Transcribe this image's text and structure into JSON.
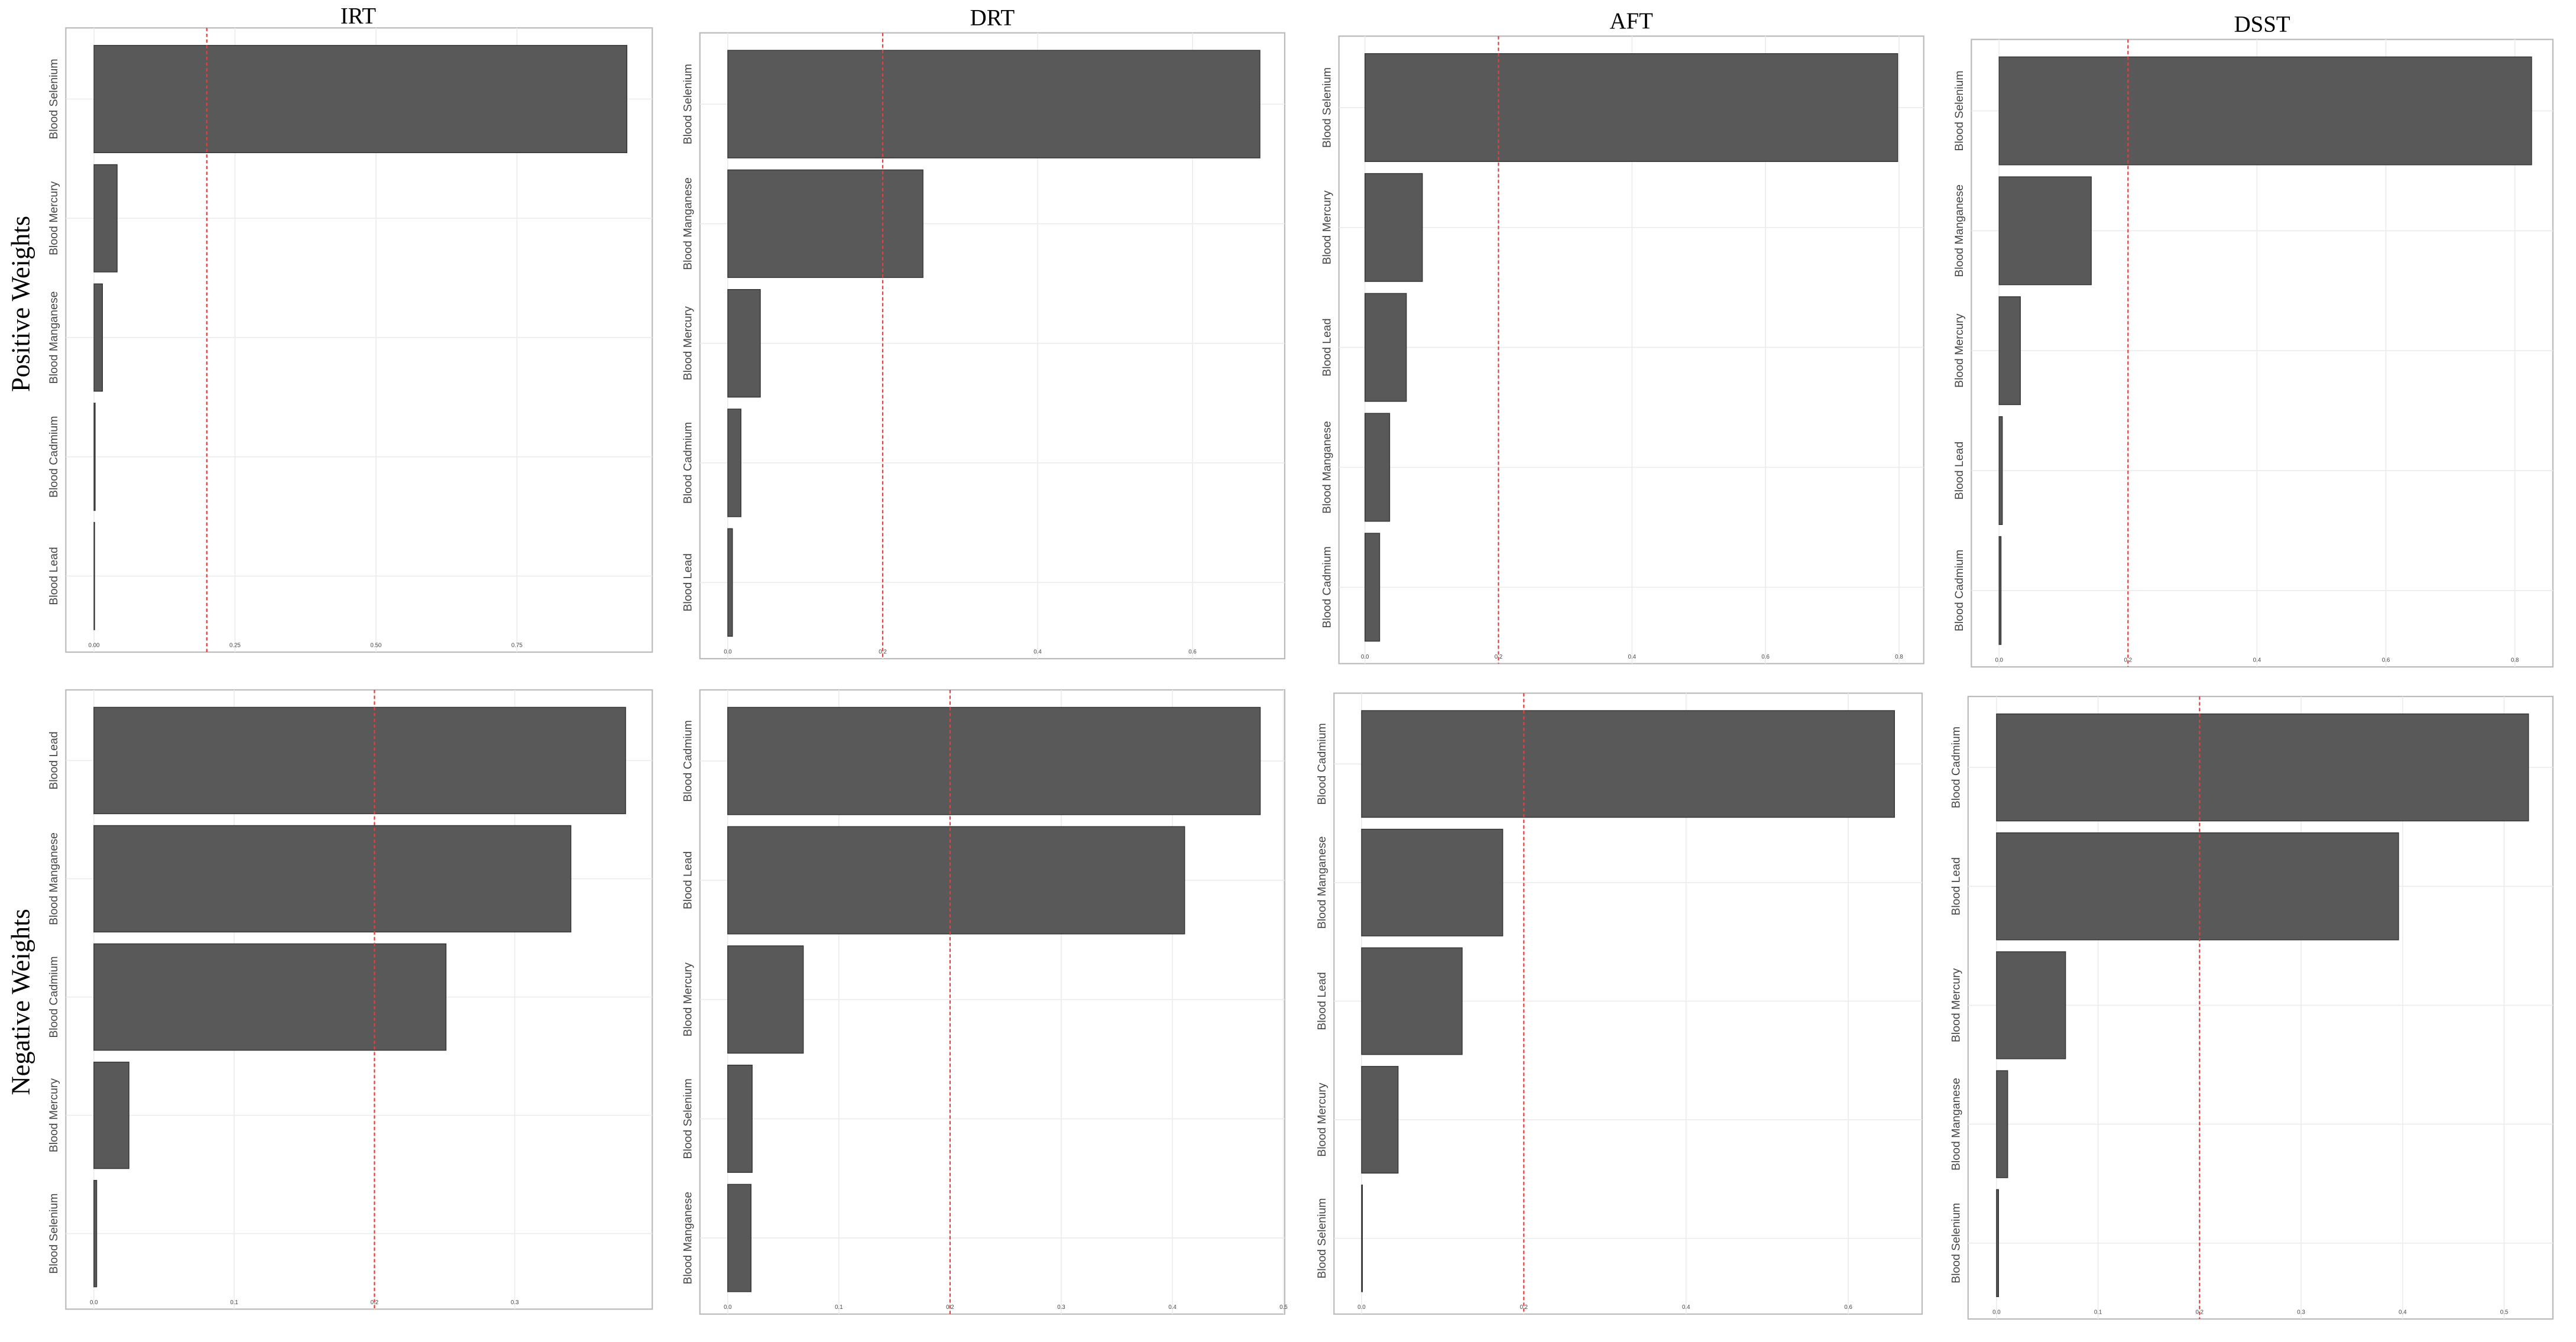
{
  "column_titles": [
    "IRT",
    "DRT",
    "AFT",
    "DSST"
  ],
  "row_titles": [
    "Positive Weights",
    "Negative Weights"
  ],
  "chart_data": [
    {
      "type": "bar",
      "orientation": "horizontal",
      "color": "#595959",
      "ref_line": 0.2,
      "grid": true,
      "categories": [
        "Blood Selenium",
        "Blood Mercury",
        "Blood Manganese",
        "Blood Cadmium",
        "Blood Lead"
      ],
      "values": [
        0.945,
        0.041,
        0.015,
        0.002,
        0.001
      ],
      "xlim": [
        -0.05,
        0.99
      ],
      "xticks": [
        {
          "value": 0,
          "label": "0.00"
        },
        0.25,
        {
          "value": 0.5,
          "label": "0.50"
        },
        0.75
      ]
    },
    {
      "type": "bar",
      "orientation": "horizontal",
      "color": "#595959",
      "ref_line": 0.2,
      "grid": true,
      "categories": [
        "Blood Selenium",
        "Blood Manganese",
        "Blood Mercury",
        "Blood Cadmium",
        "Blood Lead"
      ],
      "values": [
        0.687,
        0.252,
        0.042,
        0.017,
        0.006
      ],
      "xlim": [
        -0.036,
        0.719
      ],
      "xticks": [
        {
          "value": 0,
          "label": "0.0"
        },
        0.2,
        0.4,
        0.6
      ]
    },
    {
      "type": "bar",
      "orientation": "horizontal",
      "color": "#595959",
      "ref_line": 0.2,
      "grid": true,
      "categories": [
        "Blood Selenium",
        "Blood Mercury",
        "Blood Lead",
        "Blood Manganese",
        "Blood Cadmium"
      ],
      "values": [
        0.798,
        0.086,
        0.062,
        0.037,
        0.022
      ],
      "xlim": [
        -0.039,
        0.837
      ],
      "xticks": [
        {
          "value": 0,
          "label": "0.0"
        },
        0.2,
        0.4,
        0.6,
        0.8
      ]
    },
    {
      "type": "bar",
      "orientation": "horizontal",
      "color": "#595959",
      "ref_line": 0.2,
      "grid": true,
      "categories": [
        "Blood Selenium",
        "Blood Manganese",
        "Blood Mercury",
        "Blood Lead",
        "Blood Cadmium"
      ],
      "values": [
        0.826,
        0.143,
        0.033,
        0.005,
        0.003
      ],
      "xlim": [
        -0.043,
        0.859
      ],
      "xticks": [
        {
          "value": 0,
          "label": "0.0"
        },
        0.2,
        0.4,
        0.6,
        0.8
      ]
    },
    {
      "type": "bar",
      "orientation": "horizontal",
      "color": "#595959",
      "ref_line": 0.2,
      "grid": true,
      "categories": [
        "Blood Lead",
        "Blood Manganese",
        "Blood Cadmium",
        "Blood Mercury",
        "Blood Selenium"
      ],
      "values": [
        0.379,
        0.34,
        0.251,
        0.025,
        0.002
      ],
      "xlim": [
        -0.02,
        0.398
      ],
      "xticks": [
        {
          "value": 0,
          "label": "0.0"
        },
        0.1,
        0.2,
        0.3
      ]
    },
    {
      "type": "bar",
      "orientation": "horizontal",
      "color": "#595959",
      "ref_line": 0.2,
      "grid": true,
      "categories": [
        "Blood Cadmium",
        "Blood Lead",
        "Blood Mercury",
        "Blood Selenium",
        "Blood Manganese"
      ],
      "values": [
        0.479,
        0.411,
        0.068,
        0.022,
        0.021
      ],
      "xlim": [
        -0.025,
        0.501
      ],
      "xticks": [
        {
          "value": 0,
          "label": "0.0"
        },
        0.1,
        0.2,
        0.3,
        0.4,
        0.5
      ]
    },
    {
      "type": "bar",
      "orientation": "horizontal",
      "color": "#595959",
      "ref_line": 0.2,
      "grid": true,
      "categories": [
        "Blood Cadmium",
        "Blood Manganese",
        "Blood Lead",
        "Blood Mercury",
        "Blood Selenium"
      ],
      "values": [
        0.657,
        0.174,
        0.124,
        0.045,
        0.001
      ],
      "xlim": [
        -0.034,
        0.691
      ],
      "xticks": [
        {
          "value": 0,
          "label": "0.0"
        },
        0.2,
        0.4,
        0.6
      ]
    },
    {
      "type": "bar",
      "orientation": "horizontal",
      "color": "#595959",
      "ref_line": 0.2,
      "grid": true,
      "categories": [
        "Blood Cadmium",
        "Blood Lead",
        "Blood Mercury",
        "Blood Manganese",
        "Blood Selenium"
      ],
      "values": [
        0.524,
        0.396,
        0.068,
        0.011,
        0.002
      ],
      "xlim": [
        -0.028,
        0.548
      ],
      "xticks": [
        {
          "value": 0,
          "label": "0.0"
        },
        0.1,
        0.2,
        0.3,
        0.4,
        0.5
      ]
    }
  ]
}
